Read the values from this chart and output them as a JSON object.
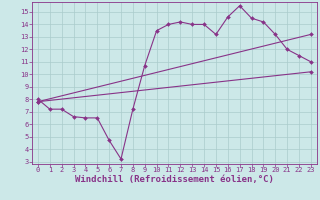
{
  "title": "",
  "xlabel": "Windchill (Refroidissement éolien,°C)",
  "bg_color": "#cce8e8",
  "grid_color": "#aacccc",
  "line_color": "#883388",
  "xlim": [
    -0.5,
    23.5
  ],
  "ylim": [
    2.8,
    15.8
  ],
  "xticks": [
    0,
    1,
    2,
    3,
    4,
    5,
    6,
    7,
    8,
    9,
    10,
    11,
    12,
    13,
    14,
    15,
    16,
    17,
    18,
    19,
    20,
    21,
    22,
    23
  ],
  "yticks": [
    3,
    4,
    5,
    6,
    7,
    8,
    9,
    10,
    11,
    12,
    13,
    14,
    15
  ],
  "line1_x": [
    0,
    1,
    2,
    3,
    4,
    5,
    6,
    7,
    8,
    9,
    10,
    11,
    12,
    13,
    14,
    15,
    16,
    17,
    18,
    19,
    20,
    21,
    22,
    23
  ],
  "line1_y": [
    8.0,
    7.2,
    7.2,
    6.6,
    6.5,
    6.5,
    4.7,
    3.2,
    7.2,
    10.7,
    13.5,
    14.0,
    14.2,
    14.0,
    14.0,
    13.2,
    14.6,
    15.5,
    14.5,
    14.2,
    13.2,
    12.0,
    11.5,
    11.0
  ],
  "line2_x": [
    0,
    23
  ],
  "line2_y": [
    7.8,
    10.2
  ],
  "line3_x": [
    0,
    23
  ],
  "line3_y": [
    7.8,
    13.2
  ],
  "marker": "D",
  "markersize": 2.0,
  "linewidth": 0.8,
  "tick_fontsize": 5.0,
  "xlabel_fontsize": 6.5,
  "spine_color": "#883388"
}
